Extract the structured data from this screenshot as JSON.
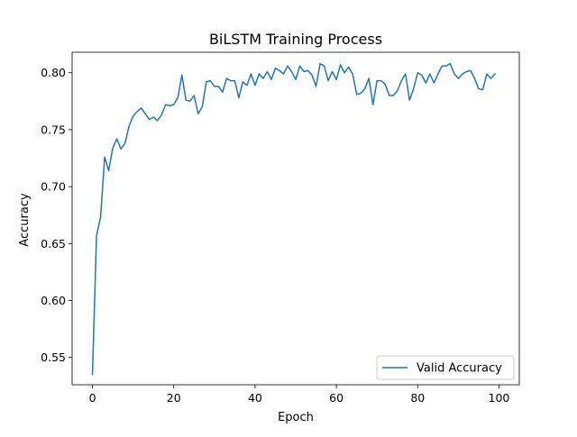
{
  "chart_data": {
    "type": "line",
    "title": "BiLSTM Training Process",
    "xlabel": "Epoch",
    "ylabel": "Accuracy",
    "xlim": [
      -5,
      105
    ],
    "ylim": [
      0.526,
      0.818
    ],
    "xticks": [
      0,
      20,
      40,
      60,
      80,
      100
    ],
    "xtick_labels": [
      "0",
      "20",
      "40",
      "60",
      "80",
      "100"
    ],
    "yticks": [
      0.55,
      0.6,
      0.65,
      0.7,
      0.75,
      0.8
    ],
    "ytick_labels": [
      "0.55",
      "0.60",
      "0.65",
      "0.70",
      "0.75",
      "0.80"
    ],
    "grid": false,
    "legend_position": "lower-right",
    "series": [
      {
        "name": "Valid Accuracy",
        "color": "#1f77b4",
        "x": [
          0,
          1,
          2,
          3,
          4,
          5,
          6,
          7,
          8,
          9,
          10,
          11,
          12,
          13,
          14,
          15,
          16,
          17,
          18,
          19,
          20,
          21,
          22,
          23,
          24,
          25,
          26,
          27,
          28,
          29,
          30,
          31,
          32,
          33,
          34,
          35,
          36,
          37,
          38,
          39,
          40,
          41,
          42,
          43,
          44,
          45,
          46,
          47,
          48,
          49,
          50,
          51,
          52,
          53,
          54,
          55,
          56,
          57,
          58,
          59,
          60,
          61,
          62,
          63,
          64,
          65,
          66,
          67,
          68,
          69,
          70,
          71,
          72,
          73,
          74,
          75,
          76,
          77,
          78,
          79,
          80,
          81,
          82,
          83,
          84,
          85,
          86,
          87,
          88,
          89,
          90,
          91,
          92,
          93,
          94,
          95,
          96,
          97,
          98,
          99
        ],
        "values": [
          0.535,
          0.657,
          0.673,
          0.726,
          0.714,
          0.734,
          0.742,
          0.733,
          0.738,
          0.753,
          0.762,
          0.766,
          0.769,
          0.764,
          0.759,
          0.761,
          0.758,
          0.763,
          0.772,
          0.771,
          0.772,
          0.778,
          0.798,
          0.776,
          0.775,
          0.78,
          0.764,
          0.77,
          0.792,
          0.793,
          0.788,
          0.788,
          0.783,
          0.795,
          0.793,
          0.793,
          0.778,
          0.792,
          0.789,
          0.799,
          0.789,
          0.799,
          0.795,
          0.801,
          0.794,
          0.804,
          0.802,
          0.799,
          0.806,
          0.801,
          0.794,
          0.806,
          0.801,
          0.802,
          0.798,
          0.788,
          0.808,
          0.806,
          0.793,
          0.801,
          0.794,
          0.807,
          0.8,
          0.805,
          0.799,
          0.781,
          0.782,
          0.786,
          0.795,
          0.772,
          0.793,
          0.793,
          0.79,
          0.78,
          0.78,
          0.784,
          0.793,
          0.799,
          0.776,
          0.786,
          0.8,
          0.798,
          0.791,
          0.799,
          0.791,
          0.799,
          0.806,
          0.806,
          0.808,
          0.799,
          0.795,
          0.799,
          0.801,
          0.802,
          0.795,
          0.786,
          0.785,
          0.799,
          0.795,
          0.799
        ]
      }
    ]
  }
}
